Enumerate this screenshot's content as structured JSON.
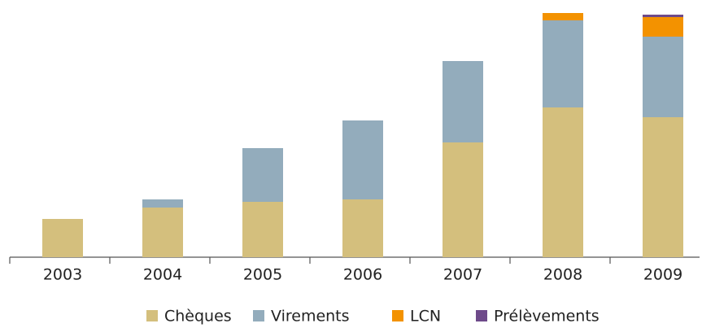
{
  "chart_data": {
    "type": "stacked_bar",
    "categories": [
      "2003",
      "2004",
      "2005",
      "2006",
      "2007",
      "2008",
      "2009"
    ],
    "series": [
      {
        "name": "Chèques",
        "color": "#d4bf7d",
        "values": [
          47,
          61,
          68,
          71,
          141,
          184,
          172
        ]
      },
      {
        "name": "Virements",
        "color": "#93acbc",
        "values": [
          0,
          10,
          66,
          97,
          100,
          107,
          99
        ]
      },
      {
        "name": "LCN",
        "color": "#f39200",
        "values": [
          0,
          0,
          0,
          0,
          0,
          9,
          24
        ]
      },
      {
        "name": "Prélèvements",
        "color": "#6e4a8a",
        "values": [
          0,
          0,
          0,
          0,
          0,
          0,
          3
        ]
      }
    ],
    "ylim": [
      0,
      300
    ]
  }
}
